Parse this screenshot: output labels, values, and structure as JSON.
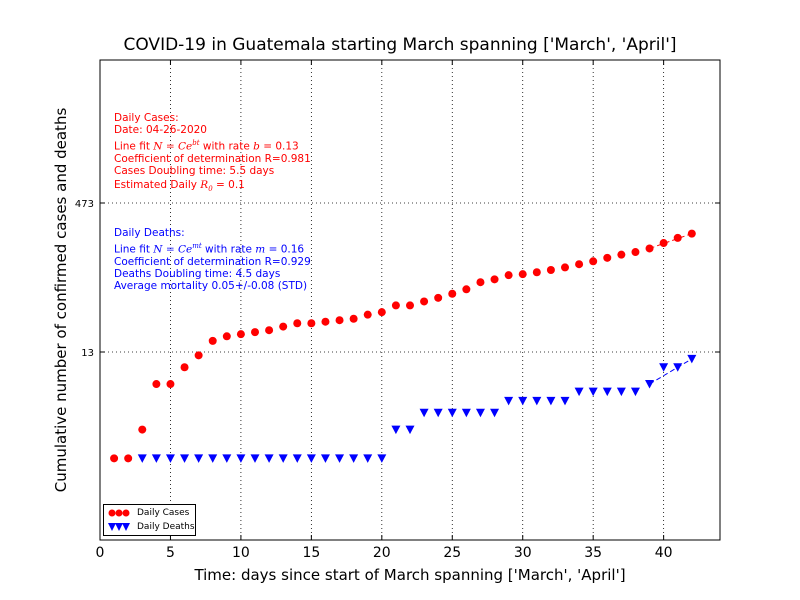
{
  "chart_data": {
    "type": "scatter",
    "title": "COVID-19 in Guatemala starting March spanning ['March', 'April']",
    "xlabel": "Time: days since start of March spanning ['March', 'April']",
    "ylabel": "Cumulative number of confirmed cases and deaths",
    "xlim": [
      0,
      44
    ],
    "xticks": [
      0,
      5,
      10,
      15,
      20,
      25,
      30,
      35,
      40
    ],
    "yscale": "log",
    "yticks": [
      13,
      473
    ],
    "grid": true,
    "legend_position": "bottom-left",
    "series": [
      {
        "name": "Daily Cases",
        "color": "#ff0000",
        "marker": "circle",
        "x": [
          1,
          2,
          3,
          4,
          5,
          6,
          7,
          8,
          9,
          10,
          11,
          12,
          13,
          14,
          15,
          16,
          17,
          18,
          19,
          20,
          21,
          22,
          23,
          24,
          25,
          26,
          27,
          28,
          29,
          30,
          31,
          32,
          33,
          34,
          35,
          36,
          37,
          38,
          39,
          40,
          41,
          42
        ],
        "y": [
          1,
          1,
          2,
          6,
          6,
          9,
          12,
          17,
          19,
          20,
          21,
          22,
          24,
          26,
          26,
          27,
          28,
          29,
          32,
          34,
          40,
          40,
          44,
          48,
          53,
          59,
          70,
          75,
          83,
          85,
          89,
          94,
          100,
          108,
          116,
          126,
          136,
          145,
          158,
          180,
          204,
          226
        ]
      },
      {
        "name": "Daily Deaths",
        "color": "#0000ff",
        "marker": "triangle-down",
        "x": [
          3,
          4,
          5,
          6,
          7,
          8,
          9,
          10,
          11,
          12,
          13,
          14,
          15,
          16,
          17,
          18,
          19,
          20,
          21,
          22,
          23,
          24,
          25,
          26,
          27,
          28,
          29,
          30,
          31,
          32,
          33,
          34,
          35,
          36,
          37,
          38,
          39,
          40,
          41,
          42
        ],
        "y": [
          1,
          1,
          1,
          1,
          1,
          1,
          1,
          1,
          1,
          1,
          1,
          1,
          1,
          1,
          1,
          1,
          1,
          1,
          2,
          2,
          3,
          3,
          3,
          3,
          3,
          3,
          4,
          4,
          4,
          4,
          4,
          5,
          5,
          5,
          5,
          5,
          6,
          9,
          9,
          11
        ]
      }
    ],
    "fit_lines": [
      {
        "series": "Daily Cases",
        "x": [
          39,
          42
        ],
        "y": [
          158,
          226
        ]
      },
      {
        "series": "Daily Deaths",
        "x": [
          39,
          42
        ],
        "y": [
          6,
          11
        ]
      }
    ],
    "annotations": {
      "cases": {
        "color": "#ff0000",
        "header": "Daily Cases:",
        "date": "Date: 04-26-2020",
        "fit_prefix": "Line fit ",
        "fit_formula": "N = Ce",
        "fit_exp": "bt",
        "fit_rate_prefix": " with rate ",
        "fit_rate_var": "b",
        "fit_rate_value": " = 0.13",
        "r": "Coefficient of determination R=0.981",
        "doubling": "Cases Doubling time: 5.5 days",
        "r0_prefix": "Estimated Daily ",
        "r0_var": "R",
        "r0_sub": "0",
        "r0_value": " = 0.1"
      },
      "deaths": {
        "color": "#0000ff",
        "header": "Daily Deaths:",
        "fit_prefix": "Line fit ",
        "fit_formula": "N = Ce",
        "fit_exp": "mt",
        "fit_rate_prefix": " with rate ",
        "fit_rate_var": "m",
        "fit_rate_value": " = 0.16",
        "r": "Coefficient of determination R=0.929",
        "doubling": "Deaths Doubling time: 4.5 days",
        "mortality": "Average mortality 0.05+/-0.08 (STD)"
      }
    }
  }
}
